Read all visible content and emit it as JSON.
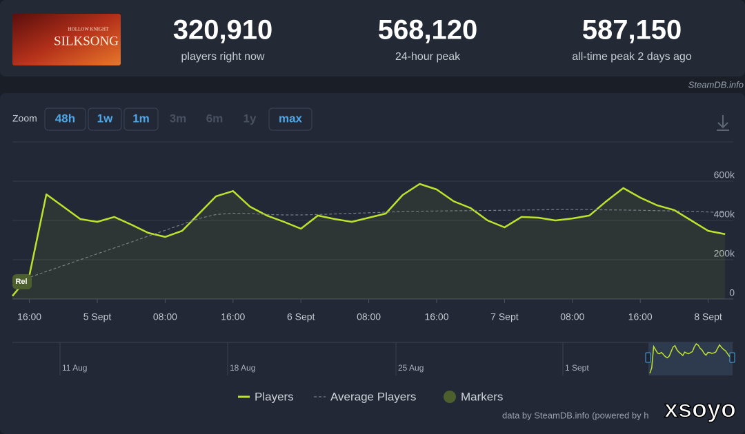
{
  "header": {
    "logo": {
      "top": "HOLLOW KNIGHT",
      "main": "SILKSONG"
    },
    "stats": [
      {
        "value": "320,910",
        "label": "players right now"
      },
      {
        "value": "568,120",
        "label": "24-hour peak"
      },
      {
        "value": "587,150",
        "label": "all-time peak 2 days ago"
      }
    ],
    "credit": "SteamDB.info"
  },
  "toolbar": {
    "zoom_label": "Zoom",
    "buttons": [
      "48h",
      "1w",
      "1m",
      "3m",
      "6m",
      "1y",
      "max"
    ]
  },
  "chart_data": {
    "type": "line",
    "categories": [
      null,
      "16:00",
      null,
      null,
      null,
      "5 Sept",
      null,
      null,
      null,
      "08:00",
      null,
      null,
      null,
      "16:00",
      null,
      null,
      null,
      "6 Sept",
      null,
      null,
      null,
      "08:00",
      null,
      null,
      null,
      "16:00",
      null,
      null,
      null,
      "7 Sept",
      null,
      null,
      null,
      "08:00",
      null,
      null,
      null,
      "16:00",
      null,
      null,
      null,
      "8 Sept",
      null
    ],
    "series": [
      {
        "name": "Players",
        "color": "#bfe22f",
        "values": [
          15000,
          120000,
          533000,
          470000,
          407000,
          393000,
          418000,
          379000,
          337000,
          316000,
          347000,
          435000,
          523000,
          550000,
          470000,
          425000,
          393000,
          358000,
          425000,
          407000,
          393000,
          414000,
          435000,
          530000,
          586000,
          558000,
          498000,
          463000,
          400000,
          365000,
          418000,
          414000,
          400000,
          410000,
          425000,
          498000,
          565000,
          516000,
          477000,
          453000,
          400000,
          347000,
          330000
        ]
      },
      {
        "name": "Average Players",
        "color": "#7a7f88",
        "dashed": true,
        "values": [
          80000,
          110000,
          140000,
          170000,
          200000,
          230000,
          260000,
          290000,
          320000,
          350000,
          380000,
          410000,
          430000,
          437000,
          435000,
          430000,
          428000,
          428000,
          430000,
          433000,
          436000,
          439000,
          442000,
          445000,
          447000,
          448000,
          449000,
          450000,
          451000,
          452000,
          453000,
          454000,
          455000,
          455000,
          455000,
          454000,
          453000,
          452000,
          450000,
          448000,
          446000,
          443000,
          440000
        ]
      }
    ],
    "ylim": [
      0,
      800000
    ],
    "yticks": [
      0,
      {
        "value": 200000,
        "label": "200k"
      },
      {
        "value": 400000,
        "label": "400k"
      },
      {
        "value": 600000,
        "label": "600k"
      }
    ],
    "grid": true,
    "markers": [
      {
        "label": "Rel"
      }
    ],
    "markers_legend": "Markers"
  },
  "navigator": {
    "labels": [
      "11 Aug",
      "18 Aug",
      "25 Aug",
      "1 Sept"
    ]
  },
  "footer": {
    "source": "data by SteamDB.info (powered by h",
    "watermark": "xsoyo"
  }
}
